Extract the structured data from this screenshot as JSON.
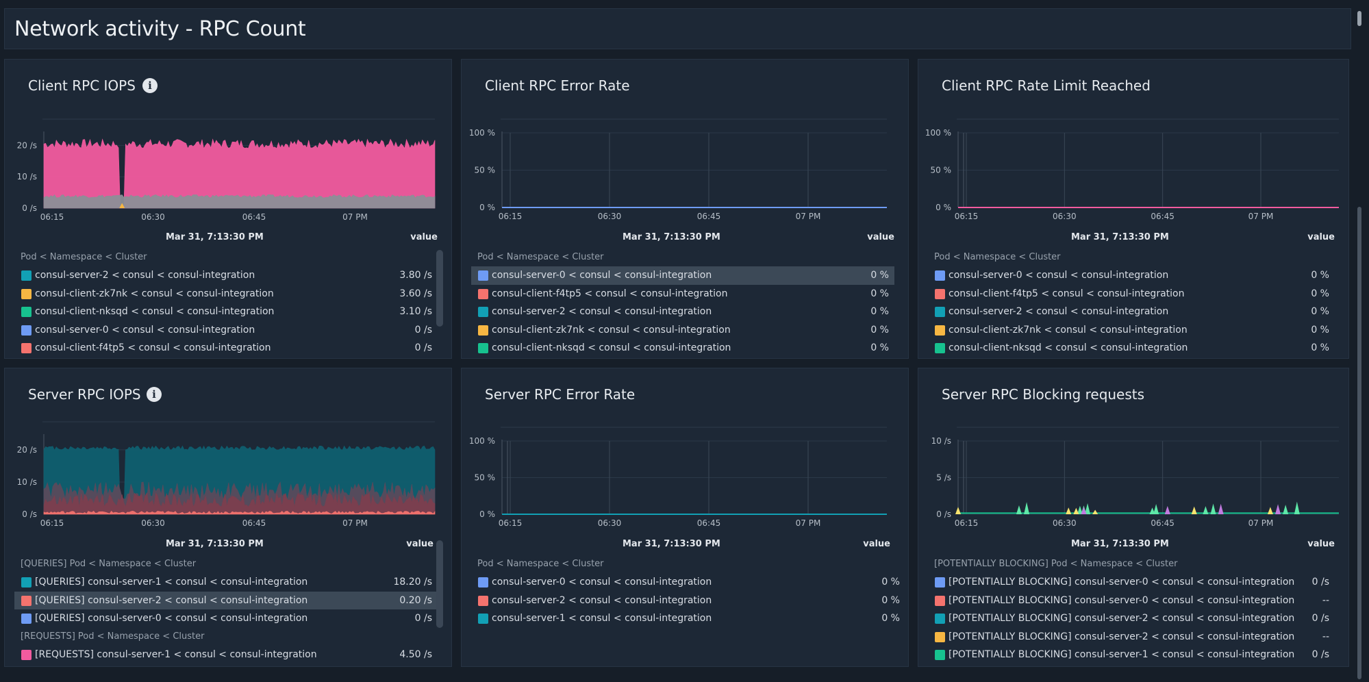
{
  "page": {
    "title": "Network activity - RPC Count"
  },
  "panels": [
    {
      "id": "p0",
      "title": "Client RPC IOPS",
      "legend_date": "Mar 31, 7:13:30 PM",
      "legend_value_header": "value",
      "groups": [
        {
          "label": "Pod < Namespace < Cluster",
          "rows": [
            {
              "color": "#12a0b5",
              "label": "consul-server-2 < consul < consul-integration",
              "value": "3.80 /s"
            },
            {
              "color": "#f7b743",
              "label": "consul-client-zk7nk < consul < consul-integration",
              "value": "3.60 /s"
            },
            {
              "color": "#17c28f",
              "label": "consul-client-nksqd < consul < consul-integration",
              "value": "3.10 /s"
            },
            {
              "color": "#6e9bf4",
              "label": "consul-server-0 < consul < consul-integration",
              "value": "0 /s"
            },
            {
              "color": "#f4736e",
              "label": "consul-client-f4tp5 < consul < consul-integration",
              "value": "0 /s"
            }
          ]
        }
      ],
      "chart_data": {
        "type": "area",
        "x_ticks": [
          "06:15",
          "06:30",
          "06:45",
          "07 PM"
        ],
        "y_ticks": [
          "20 /s",
          "10 /s",
          "0 /s"
        ],
        "ylim": [
          0,
          24
        ],
        "series": [
          {
            "color": "#f25b9f",
            "pattern": "dense",
            "base": 20.5,
            "amp": 1.5,
            "gap_at": 0.2
          },
          {
            "color": "#8c8f97",
            "pattern": "dense",
            "base": 3.8,
            "amp": 0.5
          },
          {
            "color": "#f7b743",
            "pattern": "spikes",
            "base": 0.6,
            "amp": 1.8,
            "spike_xs": [
              0.2
            ]
          }
        ]
      }
    },
    {
      "id": "p1",
      "title": "Client RPC Error Rate",
      "legend_date": "Mar 31, 7:13:30 PM",
      "legend_value_header": "value",
      "groups": [
        {
          "label": "Pod < Namespace < Cluster",
          "rows": [
            {
              "color": "#6e9bf4",
              "label": "consul-server-0 < consul < consul-integration",
              "value": "0 %",
              "highlight": true
            },
            {
              "color": "#f4736e",
              "label": "consul-client-f4tp5 < consul < consul-integration",
              "value": "0 %"
            },
            {
              "color": "#12a0b5",
              "label": "consul-server-2 < consul < consul-integration",
              "value": "0 %"
            },
            {
              "color": "#f7b743",
              "label": "consul-client-zk7nk < consul < consul-integration",
              "value": "0 %"
            },
            {
              "color": "#17c28f",
              "label": "consul-client-nksqd < consul < consul-integration",
              "value": "0 %"
            }
          ]
        }
      ],
      "chart_data": {
        "type": "line",
        "x_ticks": [
          "06:15",
          "06:30",
          "06:45",
          "07 PM"
        ],
        "y_ticks": [
          "100 %",
          "50 %",
          "0 %"
        ],
        "ylim": [
          0,
          100
        ],
        "series": [
          {
            "color": "#6e9bf4",
            "pattern": "flat",
            "base": 0
          }
        ]
      }
    },
    {
      "id": "p2",
      "title": "Client RPC Rate Limit Reached",
      "legend_date": "Mar 31, 7:13:30 PM",
      "legend_value_header": "value",
      "groups": [
        {
          "label": "Pod < Namespace < Cluster",
          "rows": [
            {
              "color": "#6e9bf4",
              "label": "consul-server-0 < consul < consul-integration",
              "value": "0 %"
            },
            {
              "color": "#f4736e",
              "label": "consul-client-f4tp5 < consul < consul-integration",
              "value": "0 %"
            },
            {
              "color": "#12a0b5",
              "label": "consul-server-2 < consul < consul-integration",
              "value": "0 %"
            },
            {
              "color": "#f7b743",
              "label": "consul-client-zk7nk < consul < consul-integration",
              "value": "0 %"
            },
            {
              "color": "#17c28f",
              "label": "consul-client-nksqd < consul < consul-integration",
              "value": "0 %"
            }
          ]
        }
      ],
      "chart_data": {
        "type": "line",
        "x_ticks": [
          "06:15",
          "06:30",
          "06:45",
          "07 PM"
        ],
        "y_ticks": [
          "100 %",
          "50 %",
          "0 %"
        ],
        "ylim": [
          0,
          100
        ],
        "series": [
          {
            "color": "#f25b9f",
            "pattern": "flat",
            "base": 0
          }
        ]
      }
    },
    {
      "id": "p3",
      "title": "Server RPC IOPS",
      "legend_date": "Mar 31, 7:13:30 PM",
      "legend_value_header": "value",
      "groups": [
        {
          "label": "[QUERIES] Pod < Namespace < Cluster",
          "rows": [
            {
              "color": "#12a0b5",
              "label": "[QUERIES] consul-server-1 < consul < consul-integration",
              "value": "18.20 /s"
            },
            {
              "color": "#f4736e",
              "label": "[QUERIES] consul-server-2 < consul < consul-integration",
              "value": "0.20 /s",
              "highlight": true
            },
            {
              "color": "#6e9bf4",
              "label": "[QUERIES] consul-server-0 < consul < consul-integration",
              "value": "0 /s"
            }
          ]
        },
        {
          "label": "[REQUESTS] Pod < Namespace < Cluster",
          "rows": [
            {
              "color": "#f25b9f",
              "label": "[REQUESTS] consul-server-1 < consul < consul-integration",
              "value": "4.50 /s"
            }
          ]
        }
      ],
      "chart_data": {
        "type": "area",
        "x_ticks": [
          "06:15",
          "06:30",
          "06:45",
          "07 PM"
        ],
        "y_ticks": [
          "20 /s",
          "10 /s",
          "0 /s"
        ],
        "ylim": [
          0,
          22
        ],
        "series": [
          {
            "color": "#0f5f70",
            "pattern": "dense",
            "base": 18.5,
            "amp": 0.6,
            "gap_at": 0.2
          },
          {
            "color": "#5a4a5c",
            "pattern": "dense",
            "base": 6.5,
            "amp": 2.5
          },
          {
            "color": "#7c3e4e",
            "pattern": "dense",
            "base": 4,
            "amp": 2
          },
          {
            "color": "#f4736e",
            "pattern": "dense",
            "base": 0.5,
            "amp": 0.4
          }
        ]
      }
    },
    {
      "id": "p4",
      "title": "Server RPC Error Rate",
      "legend_date": "Mar 31, 7:13:30 PM",
      "legend_value_header": "value",
      "groups": [
        {
          "label": "Pod < Namespace < Cluster",
          "rows": [
            {
              "color": "#6e9bf4",
              "label": "consul-server-0 < consul < consul-integration",
              "value": "0 %"
            },
            {
              "color": "#f4736e",
              "label": "consul-server-2 < consul < consul-integration",
              "value": "0 %"
            },
            {
              "color": "#12a0b5",
              "label": "consul-server-1 < consul < consul-integration",
              "value": "0 %"
            }
          ]
        }
      ],
      "chart_data": {
        "type": "line",
        "x_ticks": [
          "06:15",
          "06:30",
          "06:45",
          "07 PM"
        ],
        "y_ticks": [
          "100 %",
          "50 %",
          "0 %"
        ],
        "ylim": [
          0,
          100
        ],
        "series": [
          {
            "color": "#12a0b5",
            "pattern": "flat",
            "base": 0
          }
        ]
      }
    },
    {
      "id": "p5",
      "title": "Server RPC Blocking requests",
      "legend_date": "Mar 31, 7:13:30 PM",
      "legend_value_header": "value",
      "groups": [
        {
          "label": "[POTENTIALLY BLOCKING] Pod < Namespace < Cluster",
          "rows": [
            {
              "color": "#6e9bf4",
              "label": "[POTENTIALLY BLOCKING] consul-server-0 < consul < consul-integration",
              "value": "0 /s"
            },
            {
              "color": "#f4736e",
              "label": "[POTENTIALLY BLOCKING] consul-server-0 < consul < consul-integration",
              "value": "--"
            },
            {
              "color": "#12a0b5",
              "label": "[POTENTIALLY BLOCKING] consul-server-2 < consul < consul-integration",
              "value": "0 /s"
            },
            {
              "color": "#f7b743",
              "label": "[POTENTIALLY BLOCKING] consul-server-2 < consul < consul-integration",
              "value": "--"
            },
            {
              "color": "#17c28f",
              "label": "[POTENTIALLY BLOCKING] consul-server-1 < consul < consul-integration",
              "value": "0 /s"
            }
          ]
        }
      ],
      "chart_data": {
        "type": "area",
        "x_ticks": [
          "06:15",
          "06:30",
          "06:45",
          "07 PM"
        ],
        "y_ticks": [
          "10 /s",
          "5 /s",
          "0 /s"
        ],
        "ylim": [
          0,
          10
        ],
        "series": [
          {
            "color": "#17c28f",
            "pattern": "flat",
            "base": 0.15
          },
          {
            "color": "#5ee8a8",
            "pattern": "spikes",
            "base": 0,
            "amp": 1.5,
            "spike_xs": [
              0.16,
              0.18,
              0.32,
              0.33,
              0.34,
              0.51,
              0.52,
              0.65,
              0.67,
              0.86,
              0.89
            ]
          },
          {
            "color": "#f7e36e",
            "pattern": "spikes",
            "base": 0,
            "amp": 0.9,
            "spike_xs": [
              0.0,
              0.29,
              0.31,
              0.36,
              0.62,
              0.82
            ]
          },
          {
            "color": "#c17be0",
            "pattern": "spikes",
            "base": 0,
            "amp": 1.2,
            "spike_xs": [
              0.33,
              0.55,
              0.69,
              0.84
            ]
          }
        ]
      }
    }
  ]
}
